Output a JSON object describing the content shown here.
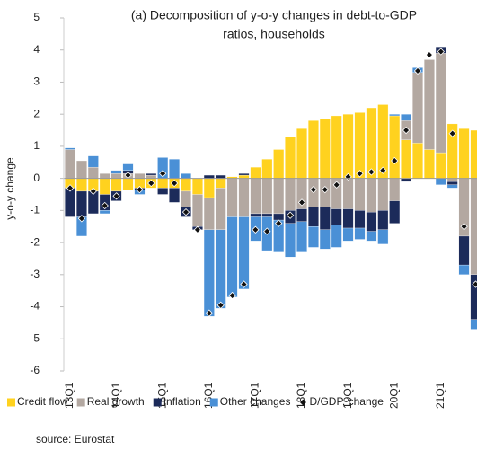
{
  "chart_data": {
    "type": "bar",
    "stacked": true,
    "title": [
      "(a) Decomposition of y-o-y changes in debt-to-GDP",
      "ratios, households"
    ],
    "y_label": "y-o-y change",
    "source": "source: Eurostat",
    "categories": [
      "13Q1",
      null,
      null,
      null,
      "14Q1",
      null,
      null,
      null,
      "15Q1",
      null,
      null,
      null,
      "16Q1",
      null,
      null,
      null,
      "17Q1",
      null,
      null,
      null,
      "18Q1",
      null,
      null,
      null,
      "19Q1",
      null,
      null,
      null,
      "20Q1",
      null,
      null,
      null,
      "21Q1",
      null,
      null,
      null
    ],
    "ylim": [
      -6,
      5
    ],
    "yticks": [
      -6,
      -5,
      -4,
      -3,
      -2,
      -1,
      0,
      1,
      2,
      3,
      4,
      5
    ],
    "grid": false,
    "legend": "bottom",
    "series": [
      {
        "name": "Credit flow",
        "color": "#ffd21f",
        "kind": "bar",
        "values": [
          -0.3,
          -0.4,
          -0.4,
          -0.5,
          -0.4,
          -0.35,
          -0.3,
          -0.3,
          -0.3,
          -0.3,
          -0.4,
          -0.5,
          -0.6,
          -0.3,
          0.05,
          0.1,
          0.35,
          0.6,
          0.9,
          1.3,
          1.55,
          1.8,
          1.85,
          1.95,
          2.0,
          2.05,
          2.2,
          2.3,
          1.95,
          1.2,
          1.1,
          0.9,
          0.8,
          1.7,
          1.55,
          1.5
        ]
      },
      {
        "name": "Real growth",
        "color": "#b3a8a1",
        "kind": "bar",
        "values": [
          0.9,
          0.55,
          0.35,
          0.15,
          0.15,
          0.15,
          0.15,
          0.1,
          0.0,
          0.0,
          -0.5,
          -1.0,
          -1.0,
          -1.3,
          -1.2,
          -1.2,
          -1.1,
          -1.1,
          -1.1,
          -1.0,
          -0.95,
          -0.9,
          -0.9,
          -0.95,
          -0.95,
          -1.0,
          -1.05,
          -1.0,
          -0.7,
          0.6,
          2.2,
          2.8,
          3.1,
          -0.1,
          -1.8,
          -3.0
        ]
      },
      {
        "name": "Inflation",
        "color": "#1c2b5a",
        "kind": "bar",
        "values": [
          -0.9,
          -0.8,
          -0.7,
          -0.5,
          -0.3,
          0.1,
          -0.05,
          0.05,
          -0.2,
          -0.45,
          -0.3,
          -0.1,
          0.1,
          0.1,
          0.0,
          0.05,
          -0.1,
          -0.1,
          -0.2,
          -0.4,
          -0.4,
          -0.6,
          -0.7,
          -0.5,
          -0.6,
          -0.55,
          -0.6,
          -0.6,
          -0.7,
          -0.1,
          0.0,
          0.0,
          0.2,
          -0.1,
          -0.9,
          -1.4
        ]
      },
      {
        "name": "Other changes",
        "color": "#4a90d6",
        "kind": "bar",
        "values": [
          0.05,
          -0.6,
          0.35,
          -0.1,
          0.1,
          0.2,
          -0.15,
          0.0,
          0.65,
          0.6,
          0.15,
          0.0,
          -2.7,
          -2.45,
          -2.5,
          -2.25,
          -0.75,
          -1.05,
          -1.0,
          -1.05,
          -0.95,
          -0.65,
          -0.6,
          -0.7,
          -0.4,
          -0.35,
          -0.3,
          -0.45,
          0.05,
          0.2,
          0.15,
          0.0,
          -0.2,
          -0.1,
          -0.3,
          -0.3
        ]
      },
      {
        "name": "D/GDP, change",
        "color": "#111111",
        "kind": "marker",
        "values": [
          -0.3,
          -1.25,
          -0.4,
          -0.85,
          -0.55,
          0.1,
          -0.35,
          -0.15,
          0.15,
          -0.15,
          -1.05,
          -1.6,
          -4.2,
          -3.95,
          -3.65,
          -3.3,
          -1.6,
          -1.65,
          -1.4,
          -1.15,
          -0.75,
          -0.35,
          -0.35,
          -0.2,
          0.05,
          0.15,
          0.2,
          0.25,
          0.55,
          1.5,
          3.35,
          3.85,
          3.95,
          1.4,
          -1.5,
          -3.3
        ]
      }
    ]
  }
}
